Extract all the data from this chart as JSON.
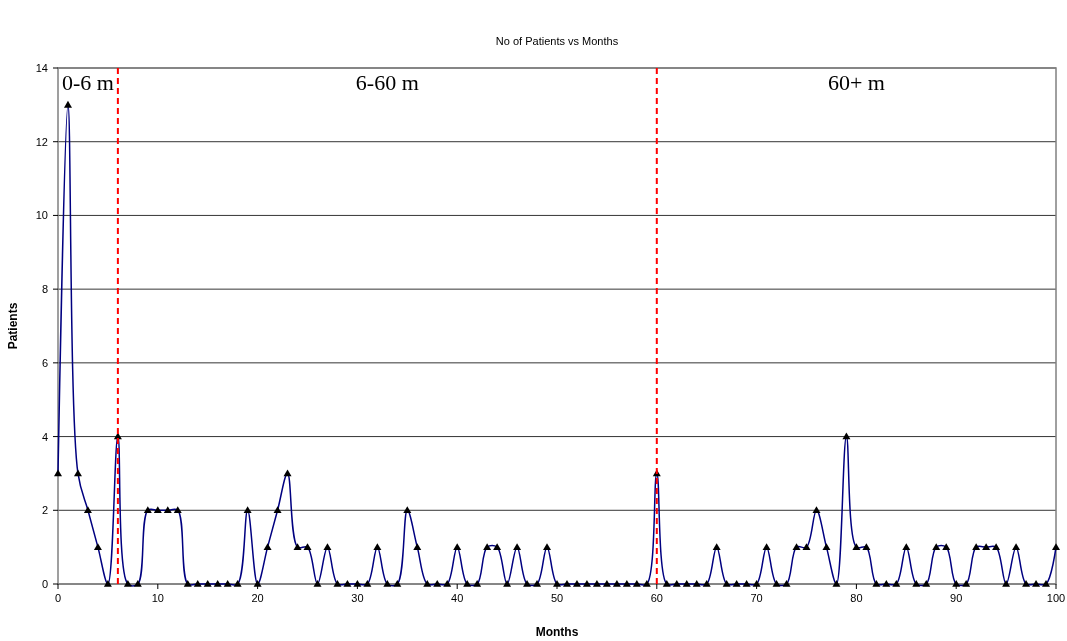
{
  "chart_data": {
    "type": "line",
    "title": "No of Patients vs Months",
    "xlabel": "Months",
    "ylabel": "Patients",
    "x": [
      0,
      1,
      2,
      3,
      4,
      5,
      6,
      7,
      8,
      9,
      10,
      11,
      12,
      13,
      14,
      15,
      16,
      17,
      18,
      19,
      20,
      21,
      22,
      23,
      24,
      25,
      26,
      27,
      28,
      29,
      30,
      31,
      32,
      33,
      34,
      35,
      36,
      37,
      38,
      39,
      40,
      41,
      42,
      43,
      44,
      45,
      46,
      47,
      48,
      49,
      50,
      51,
      52,
      53,
      54,
      55,
      56,
      57,
      58,
      59,
      60,
      61,
      62,
      63,
      64,
      65,
      66,
      67,
      68,
      69,
      70,
      71,
      72,
      73,
      74,
      75,
      76,
      77,
      78,
      79,
      80,
      81,
      82,
      83,
      84,
      85,
      86,
      87,
      88,
      89,
      90,
      91,
      92,
      93,
      94,
      95,
      96,
      97,
      98,
      99,
      100
    ],
    "series": [
      {
        "color": "#000080",
        "values": [
          3,
          13,
          3,
          2,
          1,
          0,
          4,
          0,
          0,
          2,
          2,
          2,
          2,
          0,
          0,
          0,
          0,
          0,
          0,
          2,
          0,
          1,
          2,
          3,
          1,
          1,
          0,
          1,
          0,
          0,
          0,
          0,
          1,
          0,
          0,
          2,
          1,
          0,
          0,
          0,
          1,
          0,
          0,
          1,
          1,
          0,
          1,
          0,
          0,
          1,
          0,
          0,
          0,
          0,
          0,
          0,
          0,
          0,
          0,
          0,
          3,
          0,
          0,
          0,
          0,
          0,
          1,
          0,
          0,
          0,
          0,
          1,
          0,
          0,
          1,
          1,
          2,
          1,
          0,
          4,
          1,
          1,
          0,
          0,
          0,
          1,
          0,
          0,
          1,
          1,
          0,
          0,
          1,
          1,
          1,
          0,
          1,
          0,
          0,
          0,
          1
        ]
      }
    ],
    "xlim": [
      0,
      100
    ],
    "xticks": [
      0,
      10,
      20,
      30,
      40,
      50,
      60,
      70,
      80,
      90,
      100
    ],
    "ylim": [
      0,
      14
    ],
    "yticks": [
      0,
      2,
      4,
      6,
      8,
      10,
      12,
      14
    ],
    "grid": "y",
    "marker": "triangle",
    "ref_lines": [
      {
        "axis": "x",
        "value": 6,
        "color": "#ff0000",
        "line_style": "dashed"
      },
      {
        "axis": "x",
        "value": 60,
        "color": "#ff0000",
        "line_style": "dashed"
      }
    ],
    "annotations": [
      "0-6 m",
      "6-60 m",
      "60+ m"
    ]
  }
}
